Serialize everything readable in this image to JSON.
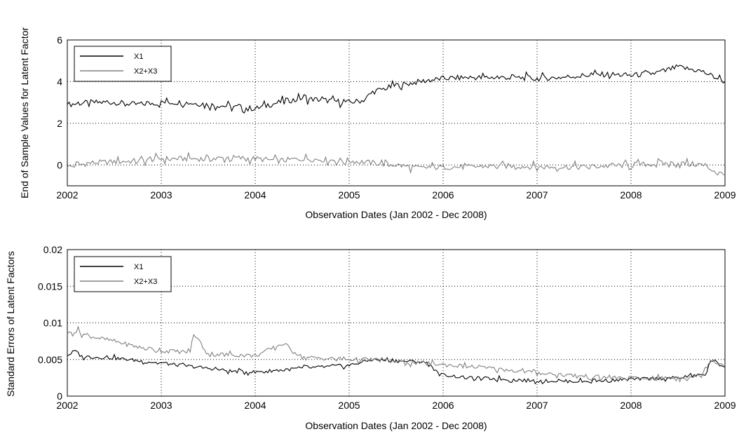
{
  "chart_data": [
    {
      "type": "line",
      "title": "",
      "xlabel": "Observation Dates (Jan 2002 - Dec 2008)",
      "ylabel": "End of Sample Values for Latent Factor",
      "xlim": [
        2002,
        2009
      ],
      "ylim": [
        -1,
        6
      ],
      "xticks": [
        "2002",
        "2003",
        "2004",
        "2005",
        "2006",
        "2007",
        "2008",
        "2009"
      ],
      "yticks": [
        "0",
        "2",
        "4",
        "6"
      ],
      "grid": true,
      "legend_position": "top-left",
      "series": [
        {
          "name": "X1",
          "color": "#000000",
          "x": [
            2002.0,
            2002.25,
            2002.5,
            2002.75,
            2003.0,
            2003.25,
            2003.5,
            2003.75,
            2004.0,
            2004.25,
            2004.5,
            2004.75,
            2005.0,
            2005.15,
            2005.25,
            2005.4,
            2005.5,
            2005.75,
            2006.0,
            2006.25,
            2006.5,
            2006.75,
            2007.0,
            2007.25,
            2007.5,
            2007.75,
            2008.0,
            2008.25,
            2008.5,
            2008.75,
            2009.0
          ],
          "values": [
            2.9,
            3.0,
            3.0,
            2.9,
            3.0,
            3.0,
            2.9,
            2.8,
            2.7,
            3.0,
            3.2,
            3.1,
            3.0,
            3.1,
            3.5,
            3.7,
            3.8,
            4.0,
            4.15,
            4.2,
            4.2,
            4.2,
            4.15,
            4.2,
            4.3,
            4.35,
            4.3,
            4.4,
            4.7,
            4.5,
            4.0
          ]
        },
        {
          "name": "X2+X3",
          "color": "#808080",
          "x": [
            2002.0,
            2002.25,
            2002.5,
            2002.75,
            2003.0,
            2003.25,
            2003.5,
            2003.75,
            2004.0,
            2004.25,
            2004.5,
            2004.75,
            2005.0,
            2005.25,
            2005.5,
            2005.75,
            2006.0,
            2006.25,
            2006.5,
            2006.75,
            2007.0,
            2007.25,
            2007.5,
            2007.75,
            2008.0,
            2008.25,
            2008.5,
            2008.75,
            2009.0
          ],
          "values": [
            -0.1,
            0.1,
            0.15,
            0.2,
            0.3,
            0.3,
            0.3,
            0.35,
            0.3,
            0.2,
            0.3,
            0.25,
            0.2,
            0.1,
            0.0,
            -0.15,
            -0.1,
            -0.1,
            -0.05,
            -0.05,
            -0.1,
            -0.1,
            -0.1,
            -0.05,
            0.0,
            0.05,
            0.1,
            0.0,
            -0.5
          ]
        }
      ]
    },
    {
      "type": "line",
      "title": "",
      "xlabel": "Observation Dates (Jan 2002 - Dec 2008)",
      "ylabel": "Standard Errors of Latent Factors",
      "xlim": [
        2002,
        2009
      ],
      "ylim": [
        0,
        0.02
      ],
      "xticks": [
        "2002",
        "2003",
        "2004",
        "2005",
        "2006",
        "2007",
        "2008",
        "2009"
      ],
      "yticks": [
        "0",
        "0.005",
        "0.01",
        "0.015",
        "0.02"
      ],
      "grid": true,
      "legend_position": "top-left",
      "series": [
        {
          "name": "X1",
          "color": "#000000",
          "x": [
            2002.0,
            2002.08,
            2002.15,
            2002.5,
            2003.0,
            2003.5,
            2003.75,
            2004.0,
            2004.5,
            2005.0,
            2005.25,
            2005.5,
            2005.75,
            2005.85,
            2005.95,
            2006.25,
            2006.5,
            2007.0,
            2007.5,
            2008.0,
            2008.5,
            2008.8,
            2008.85,
            2009.0
          ],
          "values": [
            0.0055,
            0.0062,
            0.0054,
            0.0052,
            0.0045,
            0.0038,
            0.0034,
            0.0033,
            0.0038,
            0.0042,
            0.005,
            0.0048,
            0.0047,
            0.0045,
            0.003,
            0.0025,
            0.0024,
            0.0021,
            0.002,
            0.0023,
            0.0025,
            0.003,
            0.005,
            0.004
          ]
        },
        {
          "name": "X2+X3",
          "color": "#808080",
          "x": [
            2002.0,
            2002.1,
            2002.2,
            2002.5,
            2002.75,
            2003.0,
            2003.3,
            2003.35,
            2003.5,
            2004.0,
            2004.3,
            2004.5,
            2005.0,
            2005.25,
            2005.5,
            2005.75,
            2006.0,
            2006.5,
            2007.0,
            2007.5,
            2008.0,
            2008.5,
            2008.75,
            2008.85,
            2009.0
          ],
          "values": [
            0.0085,
            0.009,
            0.0083,
            0.0075,
            0.0067,
            0.0062,
            0.006,
            0.0085,
            0.0058,
            0.0055,
            0.0072,
            0.0053,
            0.005,
            0.005,
            0.0047,
            0.0045,
            0.0043,
            0.0038,
            0.0032,
            0.0027,
            0.0024,
            0.0025,
            0.0028,
            0.005,
            0.0042
          ]
        }
      ]
    }
  ]
}
